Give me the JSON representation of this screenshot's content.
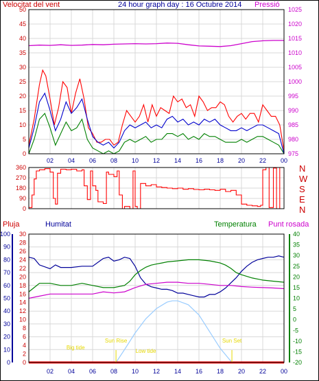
{
  "colors": {
    "wind": "#ff0000",
    "gust": "#ff0000",
    "wind_avg": "#0000cc",
    "wind_low": "#008000",
    "pressure": "#cc00cc",
    "humidity": "#000099",
    "temperature": "#008000",
    "dewpoint": "#cc00cc",
    "solar": "#99ccff",
    "rain": "#ff0000",
    "label_yellow": "#e6d800",
    "frame": "#000000"
  },
  "chart_data": [
    {
      "type": "line",
      "title": "24 hour graph day : 16 Octubre 2014",
      "left_label": "Velocitat del vent",
      "right_label": "Pressió",
      "xticks": [
        "02",
        "04",
        "06",
        "08",
        "10",
        "12",
        "14",
        "16",
        "18",
        "20",
        "22",
        "00"
      ],
      "xlim": [
        0,
        24
      ],
      "ylim_left": [
        0,
        50
      ],
      "yticks_left": [
        0,
        5,
        10,
        15,
        20,
        25,
        30,
        35,
        40,
        45,
        50
      ],
      "ylim_right": [
        975,
        1025
      ],
      "yticks_right": [
        975,
        980,
        985,
        990,
        995,
        1000,
        1005,
        1010,
        1015,
        1020,
        1025
      ],
      "series": [
        {
          "name": "wind gust",
          "axis": "left",
          "x": [
            0.0,
            0.5,
            1.0,
            1.3,
            1.6,
            2.0,
            2.4,
            2.8,
            3.2,
            3.6,
            4.0,
            4.4,
            4.8,
            5.2,
            5.6,
            6.0,
            6.4,
            6.8,
            7.2,
            7.6,
            8.0,
            8.4,
            8.8,
            9.2,
            9.6,
            10.0,
            10.4,
            10.8,
            11.2,
            11.6,
            12.0,
            12.4,
            12.8,
            13.2,
            13.6,
            14.0,
            14.4,
            14.8,
            15.2,
            15.6,
            16.0,
            16.4,
            16.8,
            17.2,
            17.6,
            18.0,
            18.4,
            18.8,
            19.2,
            19.6,
            20.0,
            20.4,
            20.8,
            21.2,
            21.6,
            22.0,
            22.4,
            22.8,
            23.2,
            23.6,
            24.0
          ],
          "values": [
            3,
            12,
            24,
            29,
            27,
            19,
            10,
            16,
            25,
            23,
            14,
            21,
            26,
            19,
            9,
            7,
            4,
            4,
            5,
            5,
            3,
            4,
            10,
            15,
            13,
            11,
            13,
            17,
            11,
            17,
            13,
            16,
            15,
            14,
            20,
            18,
            19,
            16,
            17,
            13,
            20,
            18,
            15,
            16,
            16,
            18,
            17,
            13,
            11,
            13,
            14,
            12,
            14,
            14,
            11,
            17,
            15,
            13,
            13,
            10,
            1
          ]
        },
        {
          "name": "wind average",
          "axis": "left",
          "x": [
            0.0,
            0.5,
            1.0,
            1.5,
            2.0,
            2.5,
            3.0,
            3.5,
            4.0,
            4.5,
            5.0,
            5.5,
            6.0,
            6.5,
            7.0,
            7.5,
            8.0,
            8.5,
            9.0,
            9.5,
            10.0,
            10.5,
            11.0,
            11.5,
            12.0,
            12.5,
            13.0,
            13.5,
            14.0,
            14.5,
            15.0,
            15.5,
            16.0,
            16.5,
            17.0,
            17.5,
            18.0,
            18.5,
            19.0,
            19.5,
            20.0,
            20.5,
            21.0,
            21.5,
            22.0,
            22.5,
            23.0,
            23.5,
            24.0
          ],
          "values": [
            2,
            9,
            18,
            21,
            15,
            8,
            12,
            18,
            14,
            16,
            19,
            12,
            6,
            4,
            3,
            4,
            2,
            4,
            8,
            10,
            9,
            10,
            11,
            9,
            10,
            9,
            12,
            13,
            11,
            12,
            10,
            11,
            10,
            12,
            11,
            12,
            10,
            9,
            8,
            8,
            9,
            8,
            9,
            10,
            10,
            9,
            8,
            7,
            0
          ]
        },
        {
          "name": "wind low",
          "axis": "left",
          "x": [
            0.0,
            0.5,
            1.0,
            1.5,
            2.0,
            2.5,
            3.0,
            3.5,
            4.0,
            4.5,
            5.0,
            5.5,
            6.0,
            6.5,
            7.0,
            7.5,
            8.0,
            8.5,
            9.0,
            9.5,
            10.0,
            10.5,
            11.0,
            11.5,
            12.0,
            12.5,
            13.0,
            13.5,
            14.0,
            14.5,
            15.0,
            15.5,
            16.0,
            16.5,
            17.0,
            17.5,
            18.0,
            18.5,
            19.0,
            19.5,
            20.0,
            20.5,
            21.0,
            21.5,
            22.0,
            22.5,
            23.0,
            23.5,
            24.0
          ],
          "values": [
            0,
            5,
            12,
            14,
            9,
            3,
            7,
            11,
            8,
            9,
            12,
            5,
            2,
            1,
            0,
            1,
            0,
            1,
            4,
            5,
            4,
            5,
            6,
            4,
            5,
            5,
            7,
            7,
            6,
            7,
            5,
            6,
            5,
            7,
            6,
            6,
            5,
            4,
            4,
            4,
            5,
            4,
            5,
            6,
            6,
            5,
            4,
            3,
            0
          ]
        },
        {
          "name": "pressure",
          "axis": "right",
          "x": [
            0,
            1,
            2,
            3,
            4,
            5,
            6,
            7,
            8,
            9,
            10,
            11,
            12,
            13,
            14,
            15,
            16,
            17,
            18,
            19,
            20,
            21,
            22,
            23,
            24
          ],
          "values": [
            1012.5,
            1012.7,
            1012.6,
            1012.8,
            1012.6,
            1012.7,
            1012.9,
            1012.8,
            1013.0,
            1013.1,
            1013.2,
            1013.1,
            1013.2,
            1013.4,
            1013.3,
            1012.8,
            1012.4,
            1012.3,
            1012.2,
            1012.5,
            1013.2,
            1013.9,
            1014.2,
            1014.3,
            1014.3
          ]
        }
      ]
    },
    {
      "type": "line",
      "title": "",
      "right_label_letters": [
        "N",
        "W",
        "S",
        "E",
        "N"
      ],
      "xticks": [
        "02",
        "04",
        "06",
        "08",
        "10",
        "12",
        "14",
        "16",
        "18",
        "20",
        "22",
        "00"
      ],
      "xlim": [
        0,
        24
      ],
      "ylim": [
        0,
        360
      ],
      "yticks": [
        0,
        90,
        180,
        270,
        360
      ],
      "series": [
        {
          "name": "wind direction",
          "x": [
            0.0,
            0.3,
            0.5,
            0.7,
            1.0,
            1.5,
            2.0,
            2.3,
            2.5,
            2.7,
            3.0,
            3.5,
            4.0,
            4.5,
            5.0,
            5.2,
            5.5,
            5.8,
            6.0,
            6.3,
            6.5,
            7.0,
            7.3,
            7.5,
            8.0,
            8.3,
            8.5,
            8.8,
            9.0,
            9.5,
            9.8,
            10.0,
            10.2,
            10.5,
            11.0,
            11.5,
            12.0,
            12.5,
            13.0,
            13.5,
            14.0,
            14.5,
            15.0,
            15.5,
            16.0,
            16.5,
            17.0,
            17.5,
            18.0,
            18.5,
            19.0,
            19.5,
            20.0,
            20.5,
            21.0,
            21.5,
            21.8,
            22.0,
            22.3,
            22.6,
            23.0,
            23.3,
            23.6,
            24.0
          ],
          "values": [
            10,
            120,
            260,
            330,
            340,
            350,
            320,
            90,
            40,
            310,
            345,
            340,
            345,
            330,
            340,
            200,
            80,
            330,
            200,
            160,
            60,
            45,
            320,
            300,
            280,
            330,
            120,
            0,
            20,
            0,
            330,
            20,
            0,
            220,
            200,
            210,
            190,
            185,
            180,
            175,
            180,
            170,
            175,
            168,
            165,
            170,
            165,
            160,
            170,
            150,
            160,
            120,
            40,
            30,
            25,
            20,
            30,
            340,
            360,
            10,
            355,
            0,
            360,
            360
          ]
        }
      ]
    },
    {
      "type": "line",
      "title": "",
      "labels": {
        "rain": "Pluja",
        "humidity": "Humitat",
        "temperature": "Temperatura",
        "dewpoint": "Punt rosada",
        "big_tide_am": "Big tide",
        "sun_rise": "Sun Rise",
        "low_tide": "Low tide",
        "sun_set": "Sun Set"
      },
      "xticks": [
        "02",
        "04",
        "06",
        "08",
        "10",
        "12",
        "14",
        "16",
        "18",
        "20",
        "22",
        "00"
      ],
      "xlim": [
        0,
        24
      ],
      "ylim_humidity": [
        0,
        100
      ],
      "yticks_humidity": [
        0,
        10,
        20,
        30,
        40,
        50,
        60,
        70,
        80,
        90,
        100
      ],
      "ylim_rain": [
        0,
        30
      ],
      "yticks_rain": [
        0,
        2,
        4,
        6,
        8,
        10,
        12,
        14,
        16,
        18,
        20,
        22,
        24,
        26,
        28,
        30
      ],
      "ylim_temp": [
        -20,
        40
      ],
      "yticks_temp": [
        -20,
        -15,
        -10,
        -5,
        0,
        5,
        10,
        15,
        20,
        25,
        30,
        35,
        40
      ],
      "sun_rise_hour": 8.2,
      "sun_set_hour": 19.1,
      "series": [
        {
          "name": "humidity",
          "axis": "humidity",
          "x": [
            0.0,
            0.5,
            1.0,
            2.0,
            2.5,
            3.0,
            4.0,
            5.0,
            6.0,
            7.0,
            7.5,
            8.0,
            8.5,
            9.0,
            9.5,
            10.0,
            10.5,
            11.0,
            11.5,
            12.0,
            12.5,
            13.0,
            13.5,
            14.0,
            14.5,
            15.0,
            15.5,
            16.0,
            16.5,
            17.0,
            17.5,
            18.0,
            18.5,
            19.0,
            19.5,
            20.0,
            20.5,
            21.0,
            21.5,
            22.0,
            22.5,
            23.0,
            23.5,
            24.0
          ],
          "values": [
            82,
            81,
            76,
            73,
            76,
            74,
            74,
            75,
            75,
            81,
            82,
            79,
            80,
            82,
            81,
            75,
            66,
            61,
            59,
            58,
            57,
            57,
            56,
            54,
            54,
            53,
            52,
            51,
            51,
            53,
            53,
            55,
            58,
            62,
            66,
            71,
            75,
            78,
            80,
            81,
            82,
            82,
            83,
            82
          ]
        },
        {
          "name": "temperature",
          "axis": "temp",
          "x": [
            0.0,
            0.5,
            1.0,
            2.0,
            3.0,
            4.0,
            5.0,
            6.0,
            7.0,
            8.0,
            9.0,
            9.5,
            10.0,
            10.5,
            11.0,
            11.5,
            12.0,
            12.5,
            13.0,
            14.0,
            15.0,
            16.0,
            17.0,
            17.5,
            18.0,
            18.5,
            19.0,
            19.5,
            20.0,
            21.0,
            22.0,
            23.0,
            24.0
          ],
          "values": [
            13,
            15,
            17,
            17,
            16,
            16,
            17,
            16,
            15,
            15,
            16,
            18,
            21,
            23,
            24.5,
            25.5,
            26,
            26.5,
            27,
            27.5,
            28,
            28,
            27.5,
            27,
            26.5,
            25.5,
            24,
            22,
            21,
            19.5,
            18.5,
            18,
            17.5
          ]
        },
        {
          "name": "dewpoint",
          "axis": "temp",
          "x": [
            0,
            1,
            2,
            3,
            4,
            5,
            6,
            7,
            8,
            9,
            10,
            11,
            12,
            13,
            14,
            15,
            16,
            17,
            18,
            19,
            20,
            21,
            22,
            23,
            24
          ],
          "values": [
            10,
            11,
            12,
            12,
            12,
            12,
            12,
            13,
            12.5,
            13,
            15,
            16.5,
            17,
            17.5,
            17.5,
            17,
            17,
            16.5,
            16,
            16,
            15.5,
            15.2,
            15,
            14.8,
            14.5
          ]
        },
        {
          "name": "solar",
          "axis": "humidity",
          "x": [
            8.2,
            9.0,
            10.0,
            11.0,
            12.0,
            13.0,
            13.5,
            14.0,
            15.0,
            16.0,
            17.0,
            18.0,
            19.1
          ],
          "values": [
            0,
            10,
            23,
            34,
            42,
            47,
            48,
            48,
            45,
            37,
            24,
            11,
            0
          ]
        },
        {
          "name": "rain",
          "axis": "rain",
          "x": [
            0,
            24
          ],
          "values": [
            0,
            0
          ]
        }
      ]
    }
  ]
}
